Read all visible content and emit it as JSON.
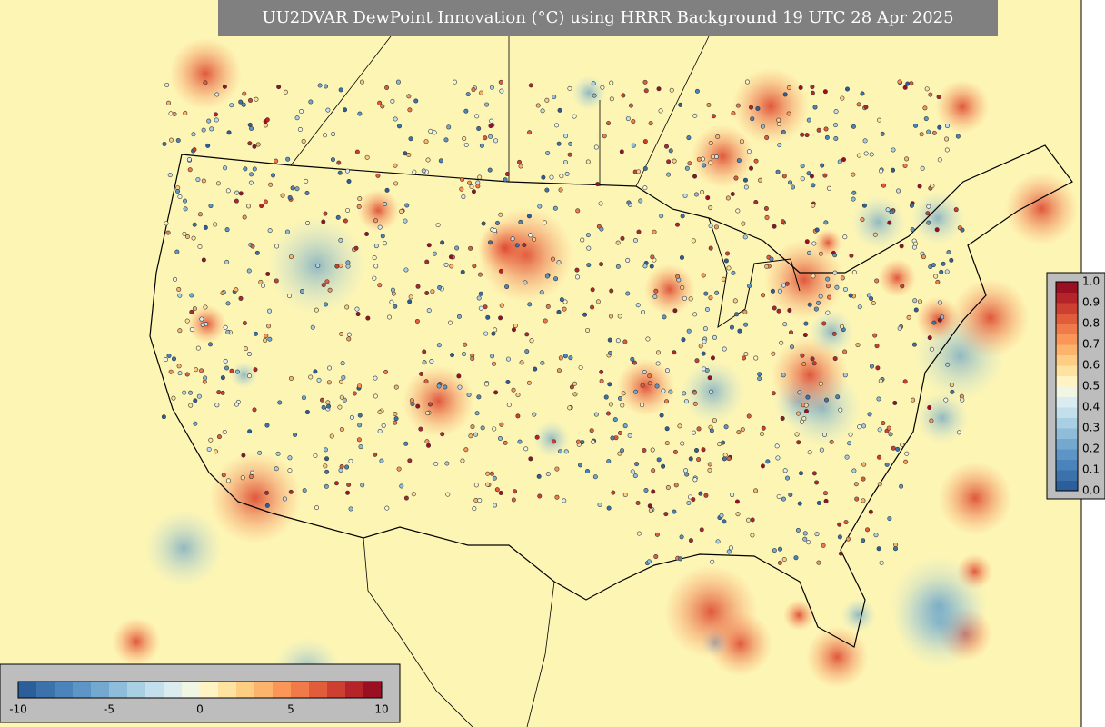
{
  "title": "UU2DVAR DewPoint Innovation (°C) using HRRR Background 19 UTC 28 Apr 2025",
  "colorbar_bottom": {
    "ticks": [
      "-10",
      "-5",
      "0",
      "5",
      "10"
    ]
  },
  "colorbar_right": {
    "ticks": [
      "1.0",
      "0.9",
      "0.8",
      "0.7",
      "0.6",
      "0.5",
      "0.4",
      "0.3",
      "0.2",
      "0.1",
      "0.0"
    ]
  }
}
